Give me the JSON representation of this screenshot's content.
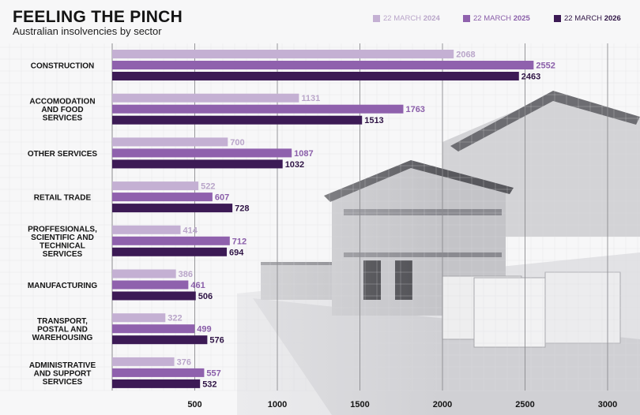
{
  "header": {
    "title": "FEELING THE PINCH",
    "subtitle": "Australian insolvencies by sector"
  },
  "colors": {
    "s2024": "#c4b0d3",
    "s2025": "#8f61ad",
    "s2026": "#3c1a55",
    "s2024_text": "#b9a5c9",
    "s2025_text": "#8a5ea9",
    "s2026_text": "#2f1445",
    "grid": "#dadade",
    "background": "#f7f7f8"
  },
  "legend": [
    {
      "date": "22 MARCH",
      "year": "2024"
    },
    {
      "date": "22 MARCH",
      "year": "2025"
    },
    {
      "date": "22 MARCH",
      "year": "2026"
    }
  ],
  "chart_data": {
    "type": "bar",
    "orientation": "horizontal",
    "title": "FEELING THE PINCH",
    "subtitle": "Australian insolvencies by sector",
    "categories": [
      [
        "CONSTRUCTION"
      ],
      [
        "ACCOMODATION",
        "AND FOOD",
        "SERVICES"
      ],
      [
        "OTHER SERVICES"
      ],
      [
        "RETAIL TRADE"
      ],
      [
        "PROFFESIONALS,",
        "SCIENTIFIC AND",
        "TECHNICAL",
        "SERVICES"
      ],
      [
        "MANUFACTURING"
      ],
      [
        "TRANSPORT,",
        "POSTAL AND",
        "WAREHOUSING"
      ],
      [
        "ADMINISTRATIVE",
        "AND SUPPORT",
        "SERVICES"
      ]
    ],
    "series": [
      {
        "name": "22 MARCH 2024",
        "values": [
          2068,
          1131,
          700,
          522,
          414,
          386,
          322,
          376
        ]
      },
      {
        "name": "22 MARCH 2025",
        "values": [
          2552,
          1763,
          1087,
          607,
          712,
          461,
          499,
          557
        ]
      },
      {
        "name": "22 MARCH 2026",
        "values": [
          2463,
          1513,
          1032,
          728,
          694,
          506,
          576,
          532
        ]
      }
    ],
    "xticks": [
      500,
      1000,
      1500,
      2000,
      2500,
      3000
    ],
    "xlim": [
      0,
      3000
    ],
    "grid": true,
    "legend_position": "top-right"
  }
}
